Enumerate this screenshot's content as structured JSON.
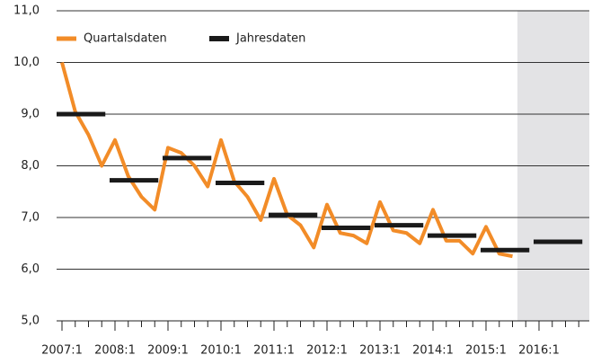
{
  "chart_data": {
    "type": "line",
    "categories": [
      "2007:1",
      null,
      null,
      null,
      "2008:1",
      null,
      null,
      null,
      "2009:1",
      null,
      null,
      null,
      "2010:1",
      null,
      null,
      null,
      "2011:1",
      null,
      null,
      null,
      "2012:1",
      null,
      null,
      null,
      "2013:1",
      null,
      null,
      null,
      "2014:1",
      null,
      null,
      null,
      "2015:1",
      null,
      null,
      null,
      "2016:1",
      null,
      null,
      null
    ],
    "series": [
      {
        "name": "Quartalsdaten",
        "color": "#f28c28",
        "values": [
          10.0,
          9.05,
          8.6,
          8.0,
          8.5,
          7.8,
          7.4,
          7.15,
          8.35,
          8.25,
          8.0,
          7.6,
          8.5,
          7.7,
          7.4,
          6.95,
          7.75,
          7.05,
          6.85,
          6.42,
          7.25,
          6.7,
          6.65,
          6.5,
          7.3,
          6.75,
          6.7,
          6.5,
          7.15,
          6.55,
          6.55,
          6.3,
          6.82,
          6.3,
          6.25,
          null,
          null,
          null,
          null,
          null
        ]
      },
      {
        "name": "Jahresdaten",
        "color": "#1a1a1a",
        "values": [
          9.0,
          null,
          null,
          null,
          7.72,
          null,
          null,
          null,
          8.15,
          null,
          null,
          null,
          7.67,
          null,
          null,
          null,
          7.05,
          null,
          null,
          null,
          6.8,
          null,
          null,
          null,
          6.85,
          null,
          null,
          null,
          6.65,
          null,
          null,
          null,
          6.37,
          null,
          null,
          null,
          6.53,
          null,
          null,
          null
        ]
      }
    ],
    "ylim": [
      5.0,
      11.0
    ],
    "yticks": [
      {
        "value": 5.0,
        "label": "5,0"
      },
      {
        "value": 6.0,
        "label": "6,0"
      },
      {
        "value": 7.0,
        "label": "7,0"
      },
      {
        "value": 8.0,
        "label": "8,0"
      },
      {
        "value": 9.0,
        "label": "9,0"
      },
      {
        "value": 10.0,
        "label": "10,0"
      },
      {
        "value": 11.0,
        "label": "11,0"
      }
    ],
    "grid": true
  }
}
